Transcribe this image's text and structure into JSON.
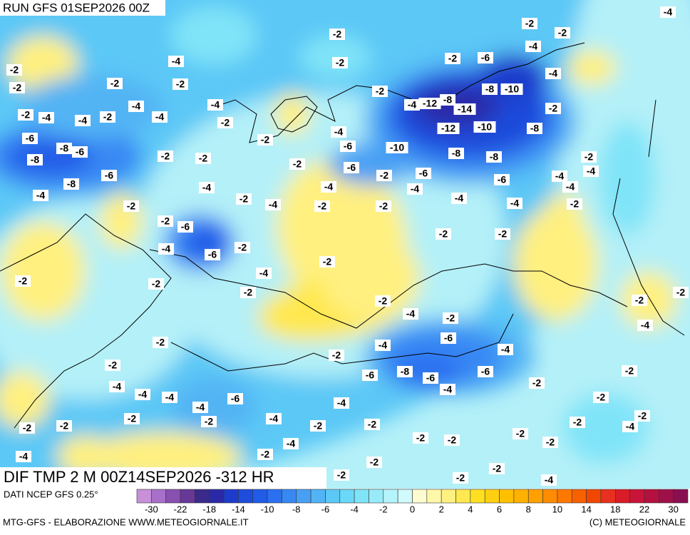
{
  "header": {
    "run": "RUN GFS 01SEP2026 00Z",
    "field": "DIF TMP 2 M 00Z14SEP2026 -312 HR"
  },
  "map": {
    "background": "#b4f0f8",
    "contour_labels": [
      -2,
      -2,
      -2,
      -4,
      -12,
      -8,
      -14,
      -12,
      -10,
      -8,
      -10,
      -2,
      -4,
      -4,
      -8,
      -10,
      -8,
      -8,
      -6,
      -6,
      -4,
      -4,
      -4,
      -2,
      -6,
      -4,
      -2,
      -2,
      -2,
      -2,
      -2,
      -2,
      -4,
      -4,
      -2,
      -4,
      -6,
      -6,
      -2,
      -2,
      -4,
      -2,
      -2,
      -2,
      -4,
      -2,
      -6,
      -4,
      -2,
      -4,
      -8,
      -6,
      -6,
      -6,
      -4,
      -2,
      -2,
      -4,
      -2,
      -2,
      -2,
      -2,
      -4,
      -2,
      -2,
      -2,
      -2,
      -2,
      -2,
      -2,
      -4,
      -2,
      -4,
      -4,
      -2,
      -6,
      -4,
      -4,
      -4,
      -4,
      -2,
      -2,
      -2,
      -2,
      -2,
      -4,
      -2,
      -6,
      -8,
      -4,
      -8,
      -6,
      -8,
      -6,
      -4,
      -2,
      -2,
      -2,
      -2,
      -4,
      -2,
      -4,
      -4,
      -2,
      -4,
      -4,
      -2,
      -2,
      -2,
      -2,
      -2,
      -4,
      -2,
      -2,
      -4,
      -4,
      -4,
      -2,
      -4,
      -2,
      -2,
      -6,
      -2,
      -2,
      -4,
      -2,
      -2,
      -6
    ]
  },
  "colorbar": {
    "source": "DATI NCEP GFS 0.25°",
    "ticks": [
      -30,
      -22,
      -18,
      -14,
      -10,
      -8,
      -6,
      -4,
      -2,
      0,
      2,
      4,
      6,
      8,
      10,
      14,
      18,
      22,
      30
    ],
    "colors": [
      "#c890d8",
      "#a870c8",
      "#8850b0",
      "#683898",
      "#3a2a8a",
      "#2a2aa8",
      "#1e3ccc",
      "#1e4cdc",
      "#205ce8",
      "#2a70f0",
      "#3888f4",
      "#48a0f4",
      "#52b4f4",
      "#5cc8f6",
      "#6ad8f8",
      "#80e4f8",
      "#98ecfa",
      "#b4f4fa",
      "#d0fafc",
      "#fcfcd0",
      "#fff8a8",
      "#fff080",
      "#ffe850",
      "#ffe020",
      "#ffd010",
      "#ffc000",
      "#ffb000",
      "#ffa000",
      "#ff8c00",
      "#ff7800",
      "#f86000",
      "#f04800",
      "#e83020",
      "#d81c28",
      "#c81438",
      "#b41040",
      "#a01048",
      "#881050"
    ]
  },
  "footer": {
    "left": "MTG-GFS - ELABORAZIONE WWW.METEOGIORNALE.IT",
    "right": "(C) METEOGIORNALE"
  }
}
